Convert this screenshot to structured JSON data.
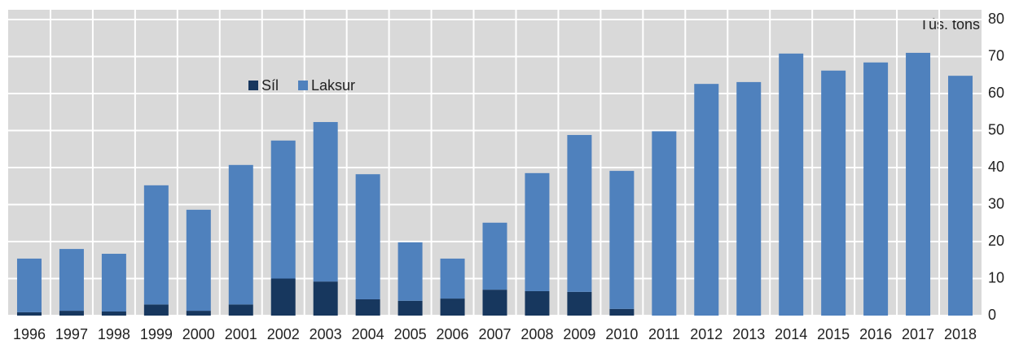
{
  "chart_data": {
    "type": "stacked_bar",
    "y_axis_label": "Tús. tons",
    "categories": [
      "1996",
      "1997",
      "1998",
      "1999",
      "2000",
      "2001",
      "2002",
      "2003",
      "2004",
      "2005",
      "2006",
      "2007",
      "2008",
      "2009",
      "2010",
      "2011",
      "2012",
      "2013",
      "2014",
      "2015",
      "2016",
      "2017",
      "2018"
    ],
    "series": [
      {
        "name": "Síl",
        "color": "#17375e",
        "values": [
          0.9,
          1.3,
          1.1,
          3.0,
          1.3,
          3.0,
          10.0,
          9.2,
          4.4,
          4.0,
          4.6,
          7.0,
          6.6,
          6.4,
          1.8,
          0,
          0,
          0,
          0,
          0,
          0,
          0,
          0
        ]
      },
      {
        "name": "Laksur",
        "color": "#4f81bd",
        "values": [
          14.5,
          16.7,
          15.6,
          32.2,
          27.3,
          37.7,
          37.3,
          43.1,
          33.8,
          15.8,
          10.8,
          18.1,
          31.9,
          42.4,
          37.3,
          49.8,
          62.6,
          63.1,
          70.8,
          66.2,
          68.4,
          71.0,
          64.8
        ]
      }
    ],
    "ylim": [
      0,
      80
    ],
    "yticks": [
      0,
      10,
      20,
      30,
      40,
      50,
      60,
      70,
      80
    ],
    "grid": true,
    "legend": "top-left"
  }
}
